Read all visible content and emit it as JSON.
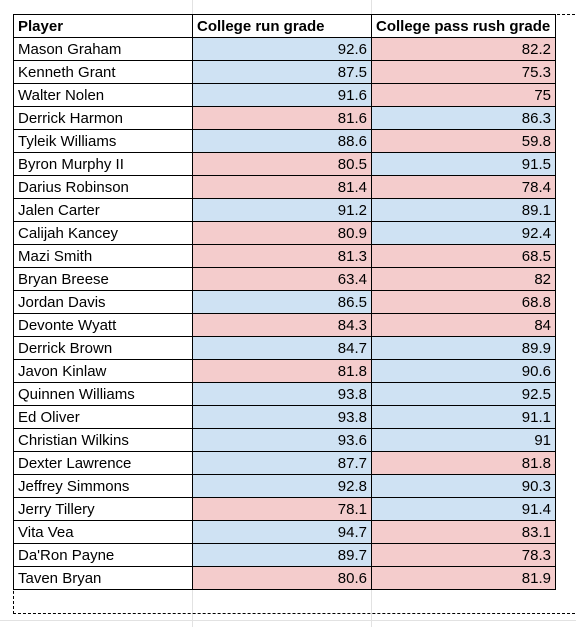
{
  "colors": {
    "blue": "#cfe2f3",
    "red": "#f4cccc"
  },
  "table": {
    "headers": [
      "Player",
      "College run grade",
      "College pass rush grade"
    ],
    "rows": [
      {
        "player": "Mason Graham",
        "run": "92.6",
        "run_color": "blue",
        "pass": "82.2",
        "pass_color": "red"
      },
      {
        "player": "Kenneth Grant",
        "run": "87.5",
        "run_color": "blue",
        "pass": "75.3",
        "pass_color": "red"
      },
      {
        "player": "Walter Nolen",
        "run": "91.6",
        "run_color": "blue",
        "pass": "75",
        "pass_color": "red"
      },
      {
        "player": "Derrick Harmon",
        "run": "81.6",
        "run_color": "red",
        "pass": "86.3",
        "pass_color": "blue"
      },
      {
        "player": "Tyleik Williams",
        "run": "88.6",
        "run_color": "blue",
        "pass": "59.8",
        "pass_color": "red"
      },
      {
        "player": "Byron Murphy II",
        "run": "80.5",
        "run_color": "red",
        "pass": "91.5",
        "pass_color": "blue"
      },
      {
        "player": "Darius Robinson",
        "run": "81.4",
        "run_color": "red",
        "pass": "78.4",
        "pass_color": "red"
      },
      {
        "player": "Jalen Carter",
        "run": "91.2",
        "run_color": "blue",
        "pass": "89.1",
        "pass_color": "blue"
      },
      {
        "player": "Calijah Kancey",
        "run": "80.9",
        "run_color": "red",
        "pass": "92.4",
        "pass_color": "blue"
      },
      {
        "player": "Mazi Smith",
        "run": "81.3",
        "run_color": "red",
        "pass": "68.5",
        "pass_color": "red"
      },
      {
        "player": "Bryan Breese",
        "run": "63.4",
        "run_color": "red",
        "pass": "82",
        "pass_color": "red"
      },
      {
        "player": "Jordan Davis",
        "run": "86.5",
        "run_color": "blue",
        "pass": "68.8",
        "pass_color": "red"
      },
      {
        "player": "Devonte Wyatt",
        "run": "84.3",
        "run_color": "red",
        "pass": "84",
        "pass_color": "red"
      },
      {
        "player": "Derrick Brown",
        "run": "84.7",
        "run_color": "blue",
        "pass": "89.9",
        "pass_color": "blue"
      },
      {
        "player": "Javon Kinlaw",
        "run": "81.8",
        "run_color": "red",
        "pass": "90.6",
        "pass_color": "blue"
      },
      {
        "player": "Quinnen Williams",
        "run": "93.8",
        "run_color": "blue",
        "pass": "92.5",
        "pass_color": "blue"
      },
      {
        "player": "Ed Oliver",
        "run": "93.8",
        "run_color": "blue",
        "pass": "91.1",
        "pass_color": "blue"
      },
      {
        "player": "Christian Wilkins",
        "run": "93.6",
        "run_color": "blue",
        "pass": "91",
        "pass_color": "blue"
      },
      {
        "player": "Dexter Lawrence",
        "run": "87.7",
        "run_color": "blue",
        "pass": "81.8",
        "pass_color": "red"
      },
      {
        "player": "Jeffrey Simmons",
        "run": "92.8",
        "run_color": "blue",
        "pass": "90.3",
        "pass_color": "blue"
      },
      {
        "player": "Jerry Tillery",
        "run": "78.1",
        "run_color": "red",
        "pass": "91.4",
        "pass_color": "blue"
      },
      {
        "player": "Vita Vea",
        "run": "94.7",
        "run_color": "blue",
        "pass": "83.1",
        "pass_color": "red"
      },
      {
        "player": "Da'Ron Payne",
        "run": "89.7",
        "run_color": "blue",
        "pass": "78.3",
        "pass_color": "red"
      },
      {
        "player": "Taven Bryan",
        "run": "80.6",
        "run_color": "red",
        "pass": "81.9",
        "pass_color": "red"
      }
    ]
  }
}
